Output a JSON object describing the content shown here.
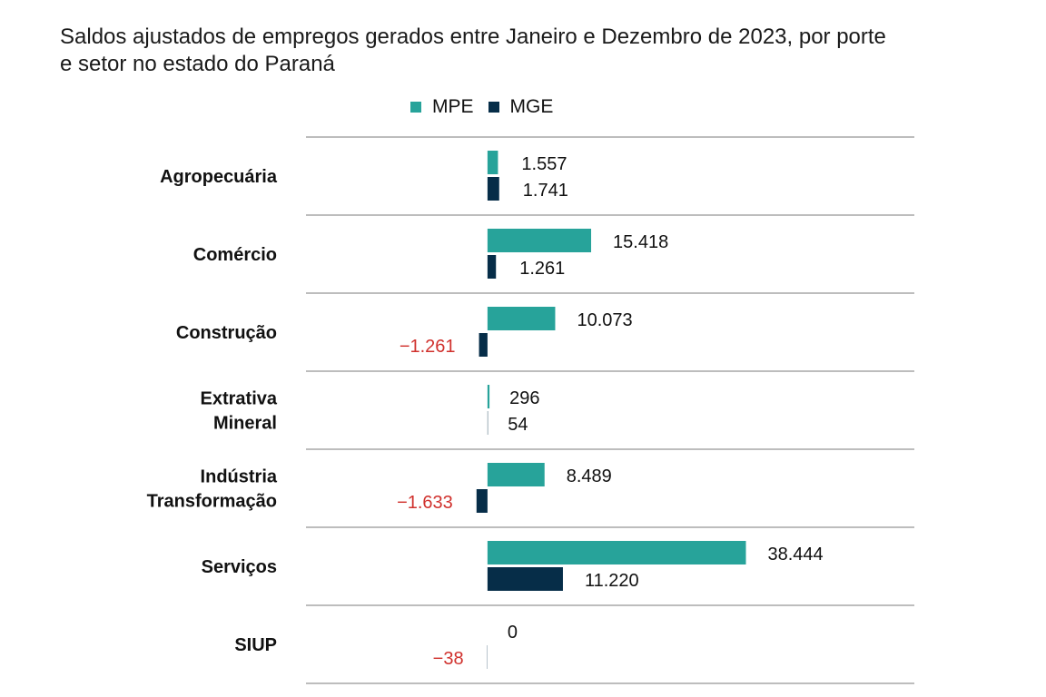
{
  "chart_data": {
    "type": "bar",
    "orientation": "horizontal",
    "title": "Saldos ajustados de empregos gerados entre Janeiro e Dezembro de 2023, por porte\n e setor no estado do Paraná",
    "xlabel": "",
    "ylabel": "",
    "grid": true,
    "legend_position": "top-center",
    "categories": [
      [
        "Agropecuária"
      ],
      [
        "Comércio"
      ],
      [
        "Construção"
      ],
      [
        "Extrativa",
        "Mineral"
      ],
      [
        "Indústria",
        "Transformação"
      ],
      [
        "Serviços"
      ],
      [
        "SIUP"
      ]
    ],
    "series": [
      {
        "name": "MPE",
        "color": "#27a39a",
        "values": [
          1557,
          15418,
          10073,
          296,
          8489,
          38444,
          0
        ],
        "labels": [
          "1.557",
          "15.418",
          "10.073",
          "296",
          "8.489",
          "38.444",
          "0"
        ]
      },
      {
        "name": "MGE",
        "color": "#062d48",
        "values": [
          1741,
          1261,
          -1261,
          54,
          -1633,
          11220,
          -38
        ],
        "labels": [
          "1.741",
          "1.261",
          "−1.261",
          "54",
          "−1.633",
          "11.220",
          "−38"
        ]
      }
    ],
    "negative_label_color": "#d0312d",
    "xlim": [
      -27000,
      63500
    ]
  }
}
